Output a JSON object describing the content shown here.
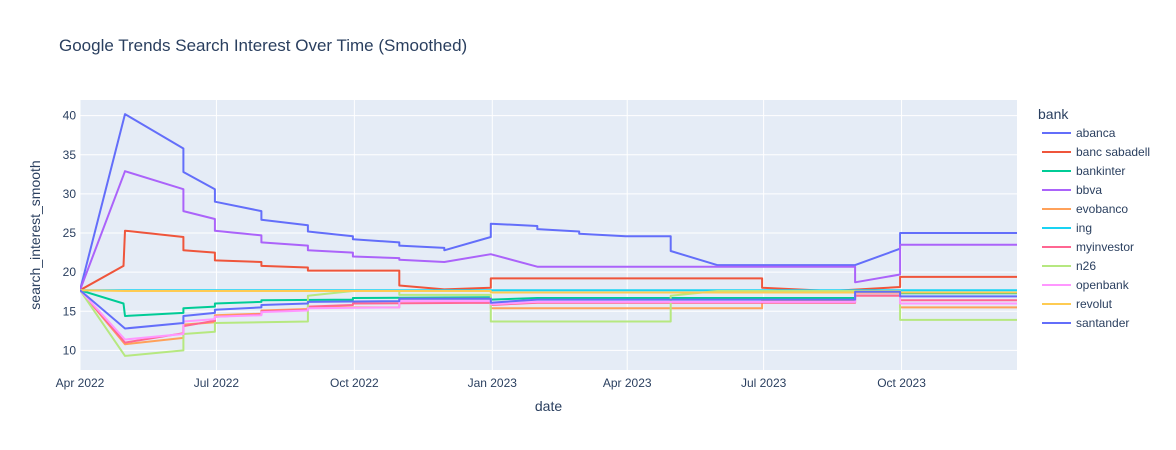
{
  "chart_data": {
    "type": "line",
    "title": "Google Trends Search Interest Over Time (Smoothed)",
    "xlabel": "date",
    "ylabel": "search_interest_smooth",
    "xlim": [
      "2022-04-01",
      "2023-12-17"
    ],
    "ylim": [
      7.5,
      42
    ],
    "x_ticks": [
      {
        "date": "2022-04-01",
        "label": "Apr 2022"
      },
      {
        "date": "2022-07-01",
        "label": "Jul 2022"
      },
      {
        "date": "2022-10-01",
        "label": "Oct 2022"
      },
      {
        "date": "2023-01-01",
        "label": "Jan 2023"
      },
      {
        "date": "2023-04-01",
        "label": "Apr 2023"
      },
      {
        "date": "2023-07-01",
        "label": "Jul 2023"
      },
      {
        "date": "2023-10-01",
        "label": "Oct 2023"
      }
    ],
    "y_ticks": [
      10,
      15,
      20,
      25,
      30,
      35,
      40
    ],
    "grid": true,
    "legend_title": "bank",
    "legend_position": "right",
    "series": [
      {
        "name": "abanca",
        "color": "#636efa",
        "points": [
          [
            "2022-04-01",
            17.7
          ],
          [
            "2022-05-01",
            40.2
          ],
          [
            "2022-06-09",
            35.8
          ],
          [
            "2022-06-09",
            32.8
          ],
          [
            "2022-06-30",
            30.6
          ],
          [
            "2022-06-30",
            29.0
          ],
          [
            "2022-07-31",
            27.8
          ],
          [
            "2022-07-31",
            26.7
          ],
          [
            "2022-08-31",
            26.0
          ],
          [
            "2022-08-31",
            25.2
          ],
          [
            "2022-09-30",
            24.6
          ],
          [
            "2022-09-30",
            24.2
          ],
          [
            "2022-10-31",
            23.8
          ],
          [
            "2022-10-31",
            23.4
          ],
          [
            "2022-11-30",
            23.1
          ],
          [
            "2022-11-30",
            22.8
          ],
          [
            "2022-12-31",
            24.5
          ],
          [
            "2022-12-31",
            26.2
          ],
          [
            "2023-01-31",
            25.9
          ],
          [
            "2023-01-31",
            25.5
          ],
          [
            "2023-02-28",
            25.2
          ],
          [
            "2023-02-28",
            24.9
          ],
          [
            "2023-03-31",
            24.6
          ],
          [
            "2023-04-30",
            24.6
          ],
          [
            "2023-04-30",
            22.7
          ],
          [
            "2023-05-31",
            20.9
          ],
          [
            "2023-08-31",
            20.9
          ],
          [
            "2023-09-30",
            23.0
          ],
          [
            "2023-09-30",
            25.0
          ],
          [
            "2023-12-17",
            25.0
          ]
        ]
      },
      {
        "name": "banc sabadell",
        "color": "#ef553b",
        "points": [
          [
            "2022-04-01",
            17.7
          ],
          [
            "2022-04-30",
            20.8
          ],
          [
            "2022-05-01",
            25.3
          ],
          [
            "2022-06-09",
            24.5
          ],
          [
            "2022-06-09",
            22.8
          ],
          [
            "2022-06-30",
            22.5
          ],
          [
            "2022-06-30",
            21.5
          ],
          [
            "2022-07-31",
            21.3
          ],
          [
            "2022-07-31",
            20.8
          ],
          [
            "2022-08-31",
            20.6
          ],
          [
            "2022-08-31",
            20.2
          ],
          [
            "2022-10-31",
            20.2
          ],
          [
            "2022-10-31",
            18.3
          ],
          [
            "2022-11-30",
            17.8
          ],
          [
            "2022-12-31",
            18.0
          ],
          [
            "2022-12-31",
            19.2
          ],
          [
            "2023-06-30",
            19.2
          ],
          [
            "2023-06-30",
            18.0
          ],
          [
            "2023-08-15",
            17.6
          ],
          [
            "2023-09-30",
            18.1
          ],
          [
            "2023-09-30",
            19.4
          ],
          [
            "2023-12-17",
            19.4
          ]
        ]
      },
      {
        "name": "bankinter",
        "color": "#00cc96",
        "points": [
          [
            "2022-04-01",
            17.7
          ],
          [
            "2022-04-30",
            16.0
          ],
          [
            "2022-05-01",
            14.4
          ],
          [
            "2022-06-09",
            14.8
          ],
          [
            "2022-06-09",
            15.4
          ],
          [
            "2022-06-30",
            15.6
          ],
          [
            "2022-06-30",
            16.0
          ],
          [
            "2022-07-31",
            16.2
          ],
          [
            "2022-07-31",
            16.4
          ],
          [
            "2022-09-30",
            16.5
          ],
          [
            "2022-09-30",
            16.7
          ],
          [
            "2022-12-31",
            16.8
          ],
          [
            "2022-12-31",
            16.5
          ],
          [
            "2023-01-31",
            16.7
          ],
          [
            "2023-08-31",
            16.7
          ],
          [
            "2023-08-31",
            17.3
          ],
          [
            "2023-12-17",
            17.3
          ]
        ]
      },
      {
        "name": "bbva",
        "color": "#ab63fa",
        "points": [
          [
            "2022-04-01",
            17.7
          ],
          [
            "2022-05-01",
            32.9
          ],
          [
            "2022-06-09",
            30.6
          ],
          [
            "2022-06-09",
            27.8
          ],
          [
            "2022-06-30",
            26.8
          ],
          [
            "2022-06-30",
            25.3
          ],
          [
            "2022-07-31",
            24.7
          ],
          [
            "2022-07-31",
            23.8
          ],
          [
            "2022-08-31",
            23.4
          ],
          [
            "2022-08-31",
            22.8
          ],
          [
            "2022-09-30",
            22.5
          ],
          [
            "2022-09-30",
            22.0
          ],
          [
            "2022-10-31",
            21.8
          ],
          [
            "2022-10-31",
            21.6
          ],
          [
            "2022-11-30",
            21.3
          ],
          [
            "2022-12-31",
            22.3
          ],
          [
            "2023-01-31",
            20.7
          ],
          [
            "2023-08-31",
            20.7
          ],
          [
            "2023-08-31",
            18.7
          ],
          [
            "2023-09-30",
            19.7
          ],
          [
            "2023-09-30",
            23.5
          ],
          [
            "2023-12-17",
            23.5
          ]
        ]
      },
      {
        "name": "evobanco",
        "color": "#ffa15a",
        "points": [
          [
            "2022-04-01",
            17.7
          ],
          [
            "2022-05-01",
            10.8
          ],
          [
            "2022-06-09",
            11.6
          ],
          [
            "2022-06-09",
            13.3
          ],
          [
            "2022-06-30",
            13.6
          ],
          [
            "2022-06-30",
            14.5
          ],
          [
            "2022-07-31",
            14.7
          ],
          [
            "2022-07-31",
            15.1
          ],
          [
            "2022-08-31",
            15.3
          ],
          [
            "2022-08-31",
            15.5
          ],
          [
            "2022-10-31",
            15.5
          ],
          [
            "2022-10-31",
            16.6
          ],
          [
            "2022-12-31",
            16.6
          ],
          [
            "2022-12-31",
            15.4
          ],
          [
            "2023-06-30",
            15.4
          ],
          [
            "2023-06-30",
            16.4
          ],
          [
            "2023-08-31",
            16.4
          ],
          [
            "2023-08-31",
            17.3
          ],
          [
            "2023-09-30",
            17.3
          ],
          [
            "2023-09-30",
            15.5
          ],
          [
            "2023-12-17",
            15.5
          ]
        ]
      },
      {
        "name": "ing",
        "color": "#19d3f3",
        "points": [
          [
            "2022-04-01",
            17.7
          ],
          [
            "2022-05-01",
            17.7
          ],
          [
            "2023-12-17",
            17.7
          ]
        ]
      },
      {
        "name": "myinvestor",
        "color": "#ff6692",
        "points": [
          [
            "2022-04-01",
            17.7
          ],
          [
            "2022-05-01",
            11.0
          ],
          [
            "2022-06-09",
            12.2
          ],
          [
            "2022-06-09",
            13.1
          ],
          [
            "2022-06-30",
            13.8
          ],
          [
            "2022-06-30",
            14.3
          ],
          [
            "2022-07-31",
            14.6
          ],
          [
            "2022-07-31",
            15.0
          ],
          [
            "2022-08-31",
            15.2
          ],
          [
            "2022-08-31",
            15.6
          ],
          [
            "2022-09-30",
            15.8
          ],
          [
            "2022-09-30",
            16.0
          ],
          [
            "2022-12-31",
            16.1
          ],
          [
            "2022-12-31",
            15.8
          ],
          [
            "2023-01-31",
            16.1
          ],
          [
            "2023-08-31",
            16.1
          ],
          [
            "2023-08-31",
            17.0
          ],
          [
            "2023-09-30",
            17.0
          ],
          [
            "2023-09-30",
            16.4
          ],
          [
            "2023-12-17",
            16.4
          ]
        ]
      },
      {
        "name": "n26",
        "color": "#b6e880",
        "points": [
          [
            "2022-04-01",
            17.7
          ],
          [
            "2022-05-01",
            9.3
          ],
          [
            "2022-06-09",
            10.0
          ],
          [
            "2022-06-09",
            12.1
          ],
          [
            "2022-06-30",
            12.4
          ],
          [
            "2022-06-30",
            13.5
          ],
          [
            "2022-07-31",
            13.6
          ],
          [
            "2022-08-31",
            13.7
          ],
          [
            "2022-08-31",
            17.0
          ],
          [
            "2022-09-30",
            17.6
          ],
          [
            "2022-10-31",
            17.6
          ],
          [
            "2022-10-31",
            17.1
          ],
          [
            "2022-12-31",
            17.1
          ],
          [
            "2022-12-31",
            13.7
          ],
          [
            "2023-04-30",
            13.7
          ],
          [
            "2023-04-30",
            17.0
          ],
          [
            "2023-05-31",
            17.6
          ],
          [
            "2023-09-30",
            17.6
          ],
          [
            "2023-09-30",
            13.9
          ],
          [
            "2023-12-17",
            13.9
          ]
        ]
      },
      {
        "name": "openbank",
        "color": "#ff97ff",
        "points": [
          [
            "2022-04-01",
            17.7
          ],
          [
            "2022-05-01",
            11.4
          ],
          [
            "2022-06-09",
            12.1
          ],
          [
            "2022-06-09",
            13.7
          ],
          [
            "2022-06-30",
            14.0
          ],
          [
            "2022-06-30",
            14.3
          ],
          [
            "2022-07-31",
            14.5
          ],
          [
            "2022-07-31",
            14.9
          ],
          [
            "2022-08-31",
            15.1
          ],
          [
            "2022-08-31",
            15.4
          ],
          [
            "2022-10-31",
            15.5
          ],
          [
            "2022-10-31",
            16.3
          ],
          [
            "2022-12-31",
            16.3
          ],
          [
            "2022-12-31",
            15.9
          ],
          [
            "2023-01-31",
            16.2
          ],
          [
            "2023-08-31",
            16.2
          ],
          [
            "2023-08-31",
            17.3
          ],
          [
            "2023-09-30",
            17.3
          ],
          [
            "2023-09-30",
            16.0
          ],
          [
            "2023-12-17",
            16.0
          ]
        ]
      },
      {
        "name": "revolut",
        "color": "#fecb52",
        "points": [
          [
            "2022-04-01",
            17.7
          ],
          [
            "2022-05-01",
            17.6
          ],
          [
            "2022-12-31",
            17.6
          ],
          [
            "2022-12-31",
            17.4
          ],
          [
            "2023-12-17",
            17.4
          ]
        ]
      },
      {
        "name": "santander",
        "color": "#636efa",
        "points": [
          [
            "2022-04-01",
            17.7
          ],
          [
            "2022-05-01",
            12.8
          ],
          [
            "2022-06-09",
            13.5
          ],
          [
            "2022-06-09",
            14.4
          ],
          [
            "2022-06-30",
            14.8
          ],
          [
            "2022-06-30",
            15.2
          ],
          [
            "2022-07-31",
            15.5
          ],
          [
            "2022-07-31",
            15.8
          ],
          [
            "2022-08-31",
            16.0
          ],
          [
            "2022-08-31",
            16.2
          ],
          [
            "2022-10-31",
            16.3
          ],
          [
            "2022-10-31",
            16.6
          ],
          [
            "2022-12-31",
            16.6
          ],
          [
            "2022-12-31",
            16.1
          ],
          [
            "2023-01-31",
            16.5
          ],
          [
            "2023-08-31",
            16.5
          ],
          [
            "2023-08-31",
            17.5
          ],
          [
            "2023-09-30",
            17.5
          ],
          [
            "2023-09-30",
            16.9
          ],
          [
            "2023-12-17",
            16.9
          ]
        ]
      }
    ]
  }
}
